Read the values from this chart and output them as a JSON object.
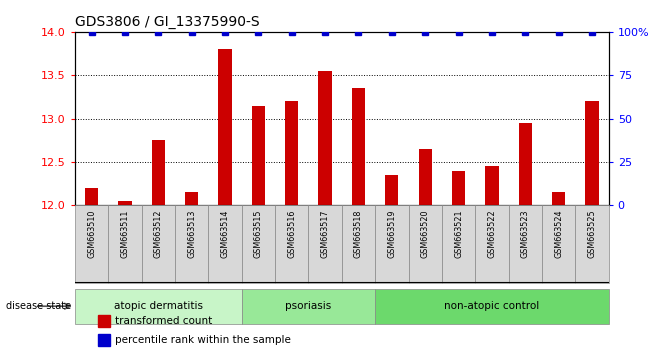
{
  "title": "GDS3806 / GI_13375990-S",
  "samples": [
    "GSM663510",
    "GSM663511",
    "GSM663512",
    "GSM663513",
    "GSM663514",
    "GSM663515",
    "GSM663516",
    "GSM663517",
    "GSM663518",
    "GSM663519",
    "GSM663520",
    "GSM663521",
    "GSM663522",
    "GSM663523",
    "GSM663524",
    "GSM663525"
  ],
  "red_values": [
    12.2,
    12.05,
    12.75,
    12.15,
    13.8,
    13.15,
    13.2,
    13.55,
    13.35,
    12.35,
    12.65,
    12.4,
    12.45,
    12.95,
    12.15,
    13.2
  ],
  "blue_values": [
    100,
    100,
    100,
    100,
    100,
    100,
    100,
    100,
    100,
    100,
    100,
    100,
    100,
    100,
    100,
    100
  ],
  "ylim_left": [
    12,
    14
  ],
  "ylim_right": [
    0,
    100
  ],
  "yticks_left": [
    12,
    12.5,
    13,
    13.5,
    14
  ],
  "yticks_right": [
    0,
    25,
    50,
    75,
    100
  ],
  "groups": [
    {
      "label": "atopic dermatitis",
      "start": 0,
      "end": 4
    },
    {
      "label": "psoriasis",
      "start": 5,
      "end": 8
    },
    {
      "label": "non-atopic control",
      "start": 9,
      "end": 15
    }
  ],
  "disease_state_label": "disease state",
  "legend_red": "transformed count",
  "legend_blue": "percentile rank within the sample",
  "bar_color": "#cc0000",
  "dot_color": "#0000cc",
  "bar_width": 0.4,
  "group_band_colors": [
    "#c8f5c8",
    "#98e898",
    "#6cd96c"
  ],
  "label_bg_color": "#d8d8d8",
  "label_edge_color": "#888888"
}
